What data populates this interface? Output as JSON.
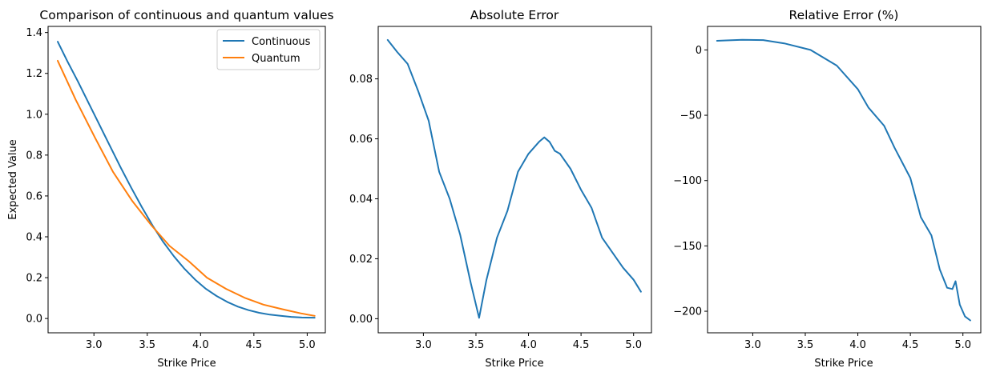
{
  "chart_data": [
    {
      "type": "line",
      "title": "Comparison of continuous and quantum values",
      "xlabel": "Strike Price",
      "ylabel": "Expected Value",
      "xlim": [
        2.57,
        5.17
      ],
      "ylim": [
        -0.07,
        1.43
      ],
      "xticks": [
        3.0,
        3.5,
        4.0,
        4.5,
        5.0
      ],
      "xtick_labels": [
        "3.0",
        "3.5",
        "4.0",
        "4.5",
        "5.0"
      ],
      "yticks": [
        0.0,
        0.2,
        0.4,
        0.6,
        0.8,
        1.0,
        1.2,
        1.4
      ],
      "ytick_labels": [
        "0.0",
        "0.2",
        "0.4",
        "0.6",
        "0.8",
        "1.0",
        "1.2",
        "1.4"
      ],
      "legend": "top-right",
      "series": [
        {
          "name": "Continuous",
          "color": "#1f77b4",
          "x": [
            2.66,
            2.75,
            2.85,
            2.95,
            3.05,
            3.15,
            3.25,
            3.35,
            3.45,
            3.55,
            3.65,
            3.75,
            3.85,
            3.95,
            4.05,
            4.15,
            4.25,
            4.35,
            4.45,
            4.55,
            4.65,
            4.75,
            4.85,
            4.95,
            5.07
          ],
          "y": [
            1.355,
            1.26,
            1.16,
            1.055,
            0.95,
            0.845,
            0.74,
            0.64,
            0.545,
            0.455,
            0.375,
            0.305,
            0.243,
            0.19,
            0.145,
            0.11,
            0.081,
            0.058,
            0.041,
            0.028,
            0.019,
            0.013,
            0.008,
            0.005,
            0.004
          ]
        },
        {
          "name": "Quantum",
          "color": "#ff7f0e",
          "x": [
            2.66,
            2.83,
            3.01,
            3.18,
            3.36,
            3.54,
            3.71,
            3.89,
            4.06,
            4.24,
            4.42,
            4.59,
            4.77,
            4.94,
            5.07
          ],
          "y": [
            1.262,
            1.07,
            0.885,
            0.717,
            0.575,
            0.455,
            0.355,
            0.28,
            0.2,
            0.145,
            0.1,
            0.068,
            0.045,
            0.025,
            0.013
          ]
        }
      ]
    },
    {
      "type": "line",
      "title": "Absolute Error",
      "xlabel": "Strike Price",
      "ylabel": "",
      "xlim": [
        2.57,
        5.17
      ],
      "ylim": [
        -0.0047,
        0.0975
      ],
      "xticks": [
        3.0,
        3.5,
        4.0,
        4.5,
        5.0
      ],
      "xtick_labels": [
        "3.0",
        "3.5",
        "4.0",
        "4.5",
        "5.0"
      ],
      "yticks": [
        0.0,
        0.02,
        0.04,
        0.06,
        0.08
      ],
      "ytick_labels": [
        "0.00",
        "0.02",
        "0.04",
        "0.06",
        "0.08"
      ],
      "series": [
        {
          "color": "#1f77b4",
          "x": [
            2.66,
            2.75,
            2.85,
            2.95,
            3.05,
            3.15,
            3.25,
            3.35,
            3.45,
            3.53,
            3.6,
            3.7,
            3.8,
            3.9,
            4.0,
            4.05,
            4.1,
            4.15,
            4.2,
            4.25,
            4.3,
            4.4,
            4.5,
            4.6,
            4.7,
            4.8,
            4.9,
            5.0,
            5.07
          ],
          "y": [
            0.093,
            0.089,
            0.085,
            0.076,
            0.066,
            0.049,
            0.04,
            0.028,
            0.012,
            0.0003,
            0.013,
            0.027,
            0.036,
            0.049,
            0.055,
            0.057,
            0.059,
            0.0605,
            0.059,
            0.056,
            0.055,
            0.05,
            0.043,
            0.037,
            0.027,
            0.022,
            0.017,
            0.013,
            0.009
          ]
        }
      ]
    },
    {
      "type": "line",
      "title": "Relative Error (%)",
      "xlabel": "Strike Price",
      "ylabel": "",
      "xlim": [
        2.57,
        5.17
      ],
      "ylim": [
        -216.5,
        18
      ],
      "xticks": [
        3.0,
        3.5,
        4.0,
        4.5,
        5.0
      ],
      "xtick_labels": [
        "3.0",
        "3.5",
        "4.0",
        "4.5",
        "5.0"
      ],
      "yticks": [
        0,
        -50,
        -100,
        -150,
        -200
      ],
      "ytick_labels": [
        "0",
        "−50",
        "−100",
        "−150",
        "−200"
      ],
      "series": [
        {
          "color": "#1f77b4",
          "x": [
            2.66,
            2.75,
            2.9,
            3.1,
            3.3,
            3.55,
            3.8,
            4.0,
            4.1,
            4.25,
            4.35,
            4.5,
            4.6,
            4.7,
            4.78,
            4.85,
            4.9,
            4.93,
            4.97,
            5.02,
            5.07
          ],
          "y": [
            7,
            7.3,
            7.8,
            7.5,
            5,
            0,
            -12,
            -30,
            -44,
            -58,
            -75,
            -98,
            -128,
            -142,
            -168,
            -182,
            -183,
            -177,
            -195,
            -204,
            -207
          ]
        }
      ]
    }
  ]
}
